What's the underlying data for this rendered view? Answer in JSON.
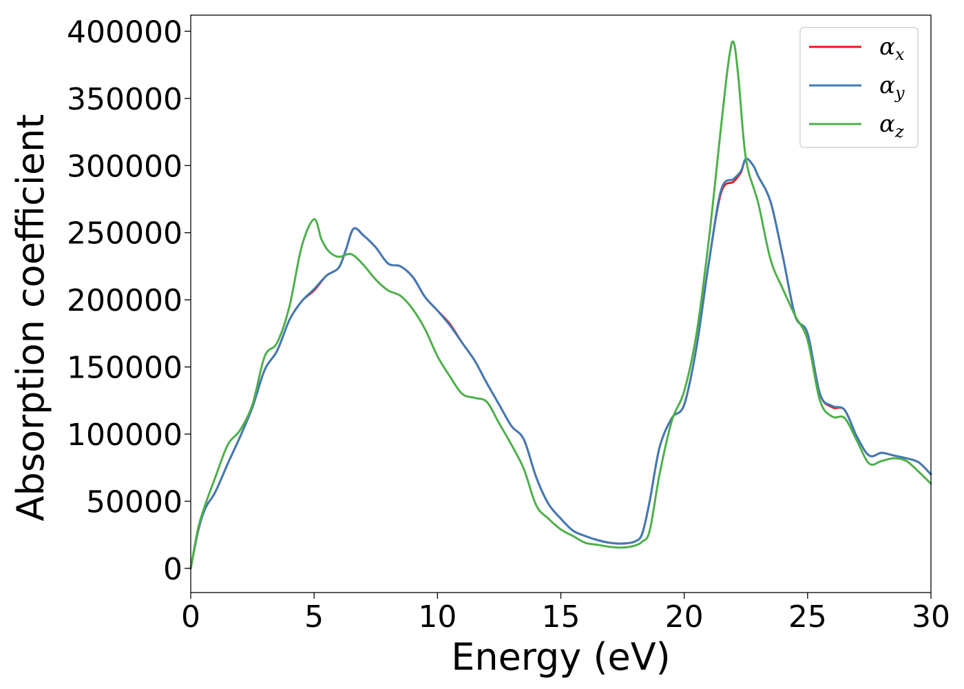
{
  "chart_data": {
    "type": "line",
    "title": "",
    "xlabel": "Energy (eV)",
    "ylabel": "Absorption coefficient",
    "xlim": [
      0,
      30
    ],
    "ylim": [
      -18000,
      412000
    ],
    "xticks": [
      0,
      5,
      10,
      15,
      20,
      25,
      30
    ],
    "yticks": [
      0,
      50000,
      100000,
      150000,
      200000,
      250000,
      300000,
      350000,
      400000
    ],
    "grid": false,
    "legend_position": "top-right",
    "series": [
      {
        "name": "αx",
        "symbol": "α",
        "subscript": "x",
        "color": "#e41a1c",
        "x": [
          0,
          0.3,
          0.6,
          1.0,
          1.5,
          2.0,
          2.5,
          3.0,
          3.5,
          4.0,
          4.5,
          5.0,
          5.5,
          6.0,
          6.3,
          6.6,
          7.0,
          7.5,
          8.0,
          8.5,
          9.0,
          9.5,
          10.0,
          10.5,
          11.0,
          11.5,
          12.0,
          12.5,
          13.0,
          13.5,
          14.0,
          14.5,
          15.0,
          15.5,
          16.0,
          16.5,
          17.0,
          17.5,
          18.0,
          18.3,
          18.6,
          19.0,
          19.5,
          20.0,
          20.5,
          21.0,
          21.5,
          22.0,
          22.3,
          22.5,
          22.8,
          23.0,
          23.5,
          24.0,
          24.5,
          25.0,
          25.5,
          26.0,
          26.5,
          27.0,
          27.5,
          28.0,
          28.5,
          29.0,
          29.5,
          30.0
        ],
        "y": [
          0,
          28000,
          45000,
          57000,
          78000,
          98000,
          120000,
          148000,
          162000,
          185000,
          199000,
          207000,
          218000,
          224000,
          238000,
          253000,
          248000,
          239000,
          227000,
          225000,
          217000,
          202000,
          192000,
          182000,
          168000,
          155000,
          138000,
          122000,
          106000,
          96000,
          68000,
          48000,
          37000,
          28000,
          24000,
          21000,
          19000,
          18500,
          20000,
          26000,
          50000,
          90000,
          112000,
          122000,
          165000,
          228000,
          280000,
          288000,
          295000,
          305000,
          300000,
          292000,
          273000,
          232000,
          188000,
          175000,
          130000,
          120000,
          118000,
          98000,
          84000,
          86000,
          84000,
          82000,
          79000,
          70000
        ]
      },
      {
        "name": "αy",
        "symbol": "α",
        "subscript": "y",
        "color": "#3f7bb5",
        "x": [
          0,
          0.3,
          0.6,
          1.0,
          1.5,
          2.0,
          2.5,
          3.0,
          3.5,
          4.0,
          4.5,
          5.0,
          5.5,
          6.0,
          6.3,
          6.6,
          7.0,
          7.5,
          8.0,
          8.5,
          9.0,
          9.5,
          10.0,
          10.5,
          11.0,
          11.5,
          12.0,
          12.5,
          13.0,
          13.5,
          14.0,
          14.5,
          15.0,
          15.5,
          16.0,
          16.5,
          17.0,
          17.5,
          18.0,
          18.3,
          18.6,
          19.0,
          19.5,
          20.0,
          20.5,
          21.0,
          21.5,
          22.0,
          22.3,
          22.5,
          22.8,
          23.0,
          23.5,
          24.0,
          24.5,
          25.0,
          25.5,
          26.0,
          26.5,
          27.0,
          27.5,
          28.0,
          28.5,
          29.0,
          29.5,
          30.0
        ],
        "y": [
          0,
          28000,
          45000,
          57000,
          78000,
          98000,
          120000,
          148000,
          162000,
          185000,
          199000,
          208000,
          218000,
          224000,
          238000,
          253000,
          248000,
          239000,
          227000,
          225000,
          217000,
          202000,
          192000,
          181000,
          168000,
          155000,
          138000,
          122000,
          106000,
          96000,
          68000,
          48000,
          37000,
          28000,
          24000,
          21000,
          19000,
          18500,
          20000,
          26000,
          50000,
          90000,
          112000,
          122000,
          165000,
          228000,
          282000,
          290000,
          296000,
          305000,
          300000,
          292000,
          273000,
          232000,
          188000,
          175000,
          130000,
          121000,
          118000,
          98000,
          84000,
          86000,
          84000,
          82000,
          79000,
          70000
        ]
      },
      {
        "name": "αz",
        "symbol": "α",
        "subscript": "z",
        "color": "#4daf4a",
        "x": [
          0,
          0.3,
          0.6,
          1.0,
          1.5,
          2.0,
          2.5,
          3.0,
          3.5,
          4.0,
          4.5,
          5.0,
          5.3,
          5.6,
          6.0,
          6.5,
          7.0,
          7.5,
          8.0,
          8.5,
          9.0,
          9.5,
          10.0,
          10.5,
          11.0,
          11.5,
          12.0,
          12.5,
          13.0,
          13.5,
          14.0,
          14.5,
          15.0,
          15.5,
          16.0,
          16.5,
          17.0,
          17.5,
          18.0,
          18.3,
          18.6,
          19.0,
          19.5,
          20.0,
          20.5,
          21.0,
          21.5,
          21.8,
          22.0,
          22.2,
          22.5,
          23.0,
          23.5,
          24.0,
          24.5,
          25.0,
          25.5,
          26.0,
          26.5,
          27.0,
          27.5,
          28.0,
          28.5,
          29.0,
          29.5,
          30.0
        ],
        "y": [
          0,
          30000,
          48000,
          68000,
          92000,
          103000,
          122000,
          158000,
          168000,
          195000,
          240000,
          260000,
          245000,
          236000,
          232000,
          234000,
          226000,
          215000,
          207000,
          203000,
          193000,
          178000,
          158000,
          143000,
          130000,
          127000,
          124000,
          108000,
          92000,
          74000,
          47000,
          37000,
          29000,
          24000,
          19000,
          17500,
          16000,
          15500,
          17000,
          20000,
          28000,
          70000,
          110000,
          132000,
          175000,
          245000,
          330000,
          378000,
          392000,
          365000,
          305000,
          272000,
          230000,
          208000,
          188000,
          170000,
          125000,
          113000,
          112000,
          95000,
          78000,
          80000,
          82000,
          80000,
          72000,
          63000
        ]
      }
    ]
  }
}
